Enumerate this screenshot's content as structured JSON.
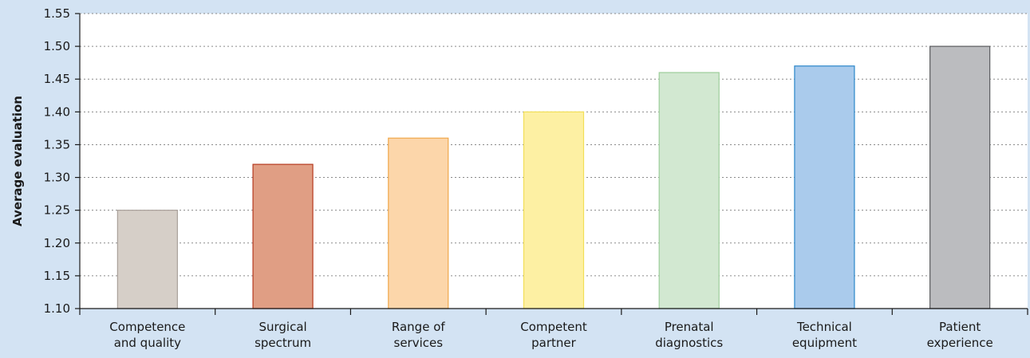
{
  "chart_data": {
    "type": "bar",
    "ylabel": "Average evaluation",
    "xlabel": "",
    "ylim": [
      1.1,
      1.55
    ],
    "ytick_step": 0.05,
    "grid": "horizontal dotted",
    "categories": [
      [
        "Competence",
        "and quality"
      ],
      [
        "Surgical",
        "spectrum"
      ],
      [
        "Range of",
        "services"
      ],
      [
        "Competent",
        "partner"
      ],
      [
        "Prenatal",
        "diagnostics"
      ],
      [
        "Technical",
        "equipment"
      ],
      [
        "Patient",
        "experience"
      ]
    ],
    "values": [
      1.25,
      1.32,
      1.36,
      1.4,
      1.46,
      1.47,
      1.5
    ],
    "colors": [
      {
        "fill": "#d6cfc8",
        "stroke": "#a9a09a"
      },
      {
        "fill": "#e09e84",
        "stroke": "#b5391f"
      },
      {
        "fill": "#fcd6aa",
        "stroke": "#f0a74a"
      },
      {
        "fill": "#fdf0a3",
        "stroke": "#f2df57"
      },
      {
        "fill": "#d2e8d1",
        "stroke": "#9ccd99"
      },
      {
        "fill": "#aacbec",
        "stroke": "#2a86c9"
      },
      {
        "fill": "#bbbcbf",
        "stroke": "#5a5b5e"
      }
    ]
  }
}
